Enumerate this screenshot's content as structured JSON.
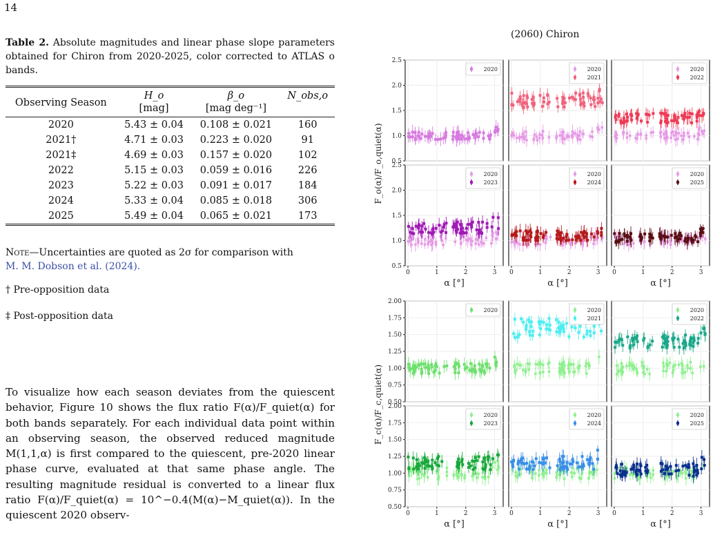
{
  "page_number": "14",
  "table": {
    "label": "Table 2.",
    "caption": "Absolute magnitudes and linear phase slope parameters obtained for Chiron from 2020-2025, color corrected to ATLAS o bands.",
    "headers": {
      "season": "Observing Season",
      "h": "H_o",
      "beta": "β_o",
      "nobs": "N_obs,o",
      "h_unit": "[mag]",
      "beta_unit": "[mag deg⁻¹]"
    },
    "rows": [
      {
        "season": "2020",
        "h": "5.43 ± 0.04",
        "beta": "0.108 ± 0.021",
        "n": "160"
      },
      {
        "season": "2021†",
        "h": "4.71 ± 0.03",
        "beta": "0.223 ± 0.020",
        "n": "91"
      },
      {
        "season": "2021‡",
        "h": "4.69 ± 0.03",
        "beta": "0.157 ± 0.020",
        "n": "102"
      },
      {
        "season": "2022",
        "h": "5.15 ± 0.03",
        "beta": "0.059 ± 0.016",
        "n": "226"
      },
      {
        "season": "2023",
        "h": "5.22 ± 0.03",
        "beta": "0.091 ± 0.017",
        "n": "184"
      },
      {
        "season": "2024",
        "h": "5.33 ± 0.04",
        "beta": "0.085 ± 0.018",
        "n": "306"
      },
      {
        "season": "2025",
        "h": "5.49 ± 0.04",
        "beta": "0.065 ± 0.021",
        "n": "173"
      }
    ],
    "note_prefix": "Note",
    "note_text": "—Uncertainties are quoted as 2σ for comparison with",
    "note_cite": "M. M. Dobson et al. (2024).",
    "footnote_dagger": "† Pre-opposition data",
    "footnote_ddagger": "‡ Post-opposition data"
  },
  "body_text": "To visualize how each season deviates from the quiescent behavior, Figure 10 shows the flux ratio F(α)/F_quiet(α) for both bands separately. For each individual data point within an observing season, the observed reduced magnitude M(1,1,α) is first compared to the quiescent, pre-2020 linear phase curve, evaluated at that same phase angle. The resulting magnitude residual is converted to a linear flux ratio F(α)/F_quiet(α) = 10^−0.4(M(α)−M_quiet(α)). In the quiescent 2020 observ-",
  "figure": {
    "title": "(2060) Chiron",
    "x_label": "α [°]",
    "y_label_top": "F_o(α)/F_o,quiet(α)",
    "y_label_bottom": "F_c(α)/F_c,quiet(α)",
    "x_ticks": [
      "0",
      "1",
      "2",
      "3"
    ]
  },
  "chart_data": [
    {
      "type": "scatter",
      "title": "(2060) Chiron",
      "band": "o",
      "xlabel": "α [°]",
      "ylabel": "F_o(α)/F_o,quiet(α)",
      "xlim": [
        0,
        3.2
      ],
      "ylim": [
        0.5,
        2.5
      ],
      "y_ticks": [
        "0.5",
        "1.0",
        "1.5",
        "2.0",
        "2.5"
      ],
      "baseline_color": "#e69be6",
      "panels": [
        {
          "season": "2020",
          "legend": [
            "2020"
          ],
          "color": "#d77be0",
          "level": 1.0,
          "noise": 0.08
        },
        {
          "season": "2021",
          "legend": [
            "2020",
            "2021"
          ],
          "color": "#f0637d",
          "level": 1.7,
          "noise": 0.15
        },
        {
          "season": "2022",
          "legend": [
            "2020",
            "2022"
          ],
          "color": "#ef3b55",
          "level": 1.35,
          "noise": 0.1
        },
        {
          "season": "2023",
          "legend": [
            "2020",
            "2023"
          ],
          "color": "#a01ab5",
          "level": 1.25,
          "noise": 0.12
        },
        {
          "season": "2024",
          "legend": [
            "2020",
            "2024"
          ],
          "color": "#b51a1a",
          "level": 1.1,
          "noise": 0.1
        },
        {
          "season": "2025",
          "legend": [
            "2020",
            "2025"
          ],
          "color": "#5a0f14",
          "level": 1.05,
          "noise": 0.1
        }
      ]
    },
    {
      "type": "scatter",
      "band": "c",
      "xlabel": "α [°]",
      "ylabel": "F_c(α)/F_c,quiet(α)",
      "xlim": [
        0,
        3.2
      ],
      "ylim": [
        0.5,
        2.0
      ],
      "y_ticks": [
        "0.50",
        "0.75",
        "1.00",
        "1.25",
        "1.50",
        "1.75",
        "2.00"
      ],
      "baseline_color": "#8ff08f",
      "panels": [
        {
          "season": "2020",
          "legend": [
            "2020"
          ],
          "color": "#6ee06e",
          "level": 1.0,
          "noise": 0.08
        },
        {
          "season": "2021",
          "legend": [
            "2020",
            "2021"
          ],
          "color": "#4deef0",
          "level": 1.6,
          "noise": 0.15
        },
        {
          "season": "2022",
          "legend": [
            "2020",
            "2022"
          ],
          "color": "#1aa88a",
          "level": 1.4,
          "noise": 0.1
        },
        {
          "season": "2023",
          "legend": [
            "2020",
            "2023"
          ],
          "color": "#18a83a",
          "level": 1.15,
          "noise": 0.1
        },
        {
          "season": "2024",
          "legend": [
            "2020",
            "2024"
          ],
          "color": "#3a8fe8",
          "level": 1.15,
          "noise": 0.1
        },
        {
          "season": "2025",
          "legend": [
            "2020",
            "2025"
          ],
          "color": "#0a2f8f",
          "level": 1.05,
          "noise": 0.1
        }
      ]
    }
  ]
}
